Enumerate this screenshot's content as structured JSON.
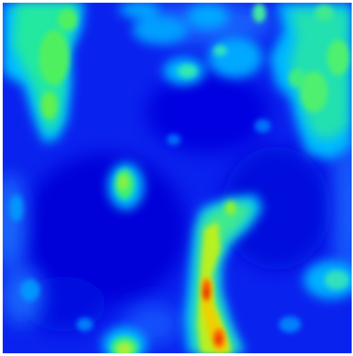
{
  "image": {
    "kind": "heatmap-render",
    "colormap": [
      "#0000ee",
      "#0a3cff",
      "#00b4ff",
      "#00e8d0",
      "#40f06a",
      "#b6f020",
      "#f0d800",
      "#ff7a00",
      "#ff1a00",
      "#c80000"
    ],
    "background_color": "#0a22ee",
    "frame_color": "#ffffff",
    "hot_spots": [
      {
        "id": "upper-left-blob",
        "intensity": 0.45
      },
      {
        "id": "upper-right-blob",
        "intensity": 0.42
      },
      {
        "id": "center-left-small-blob",
        "intensity": 0.43
      },
      {
        "id": "lower-center-streak",
        "intensity": 1.0
      },
      {
        "id": "bottom-left-blob",
        "intensity": 0.5
      },
      {
        "id": "right-middle-blob",
        "intensity": 0.32
      },
      {
        "id": "top-center-patches",
        "intensity": 0.34
      }
    ]
  }
}
